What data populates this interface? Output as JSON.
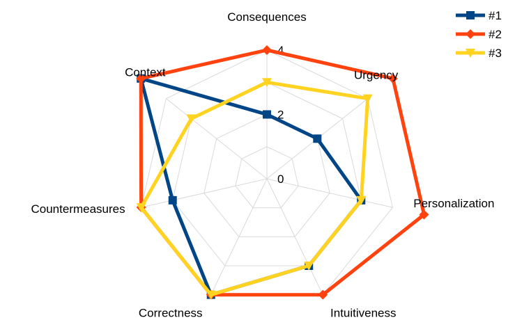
{
  "chart_data": {
    "type": "radar",
    "axes": [
      "Consequences",
      "Urgency",
      "Personalization",
      "Intuitiveness",
      "Correctness",
      "Countermeasures",
      "Context"
    ],
    "tick_labels": [
      "0",
      "2",
      "4"
    ],
    "rmax": 4,
    "series": [
      {
        "name": "#1",
        "color": "#004586",
        "marker": "square",
        "values": [
          2,
          2,
          3,
          3,
          4,
          3,
          5
        ]
      },
      {
        "name": "#2",
        "color": "#ff420e",
        "marker": "diamond",
        "values": [
          4,
          5,
          5,
          4,
          4,
          4,
          5
        ]
      },
      {
        "name": "#3",
        "color": "#ffd320",
        "marker": "triangle-down",
        "values": [
          3,
          4,
          3,
          3,
          4,
          4,
          3
        ]
      }
    ],
    "legend_position": "top-right",
    "grid": true
  }
}
